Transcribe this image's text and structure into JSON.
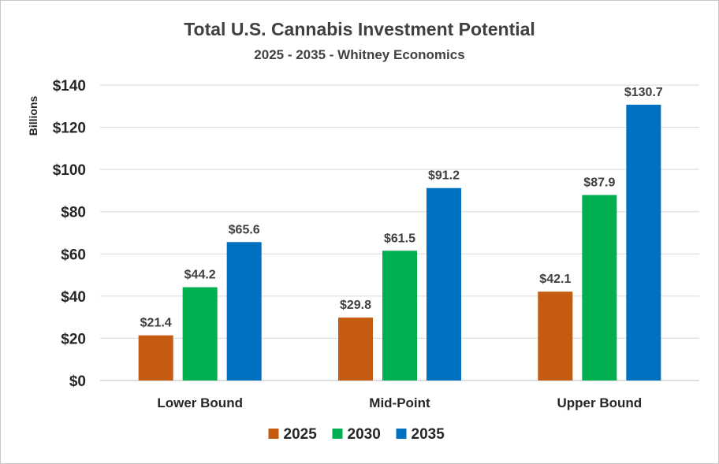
{
  "chart_data": {
    "type": "bar",
    "title": "Total U.S. Cannabis Investment Potential",
    "subtitle": "2025 - 2035 - Whitney Economics",
    "ylabel": "Billions",
    "xlabel": "",
    "categories": [
      "Lower Bound",
      "Mid-Point",
      "Upper Bound"
    ],
    "series": [
      {
        "name": "2025",
        "color": "#c55a11",
        "values": [
          21.4,
          29.8,
          42.1
        ],
        "labels": [
          "$21.4",
          "$29.8",
          "$42.1"
        ]
      },
      {
        "name": "2030",
        "color": "#00b050",
        "values": [
          44.2,
          61.5,
          87.9
        ],
        "labels": [
          "$44.2",
          "$61.5",
          "$87.9"
        ]
      },
      {
        "name": "2035",
        "color": "#0070c0",
        "values": [
          65.6,
          91.2,
          130.7
        ],
        "labels": [
          "$65.6",
          "$91.2",
          "$130.7"
        ]
      }
    ],
    "ylim": [
      0,
      140
    ],
    "yticks": [
      0,
      20,
      40,
      60,
      80,
      100,
      120,
      140
    ],
    "ytick_labels": [
      "$0",
      "$20",
      "$40",
      "$60",
      "$80",
      "$100",
      "$120",
      "$140"
    ],
    "grid": true,
    "legend_position": "bottom"
  }
}
